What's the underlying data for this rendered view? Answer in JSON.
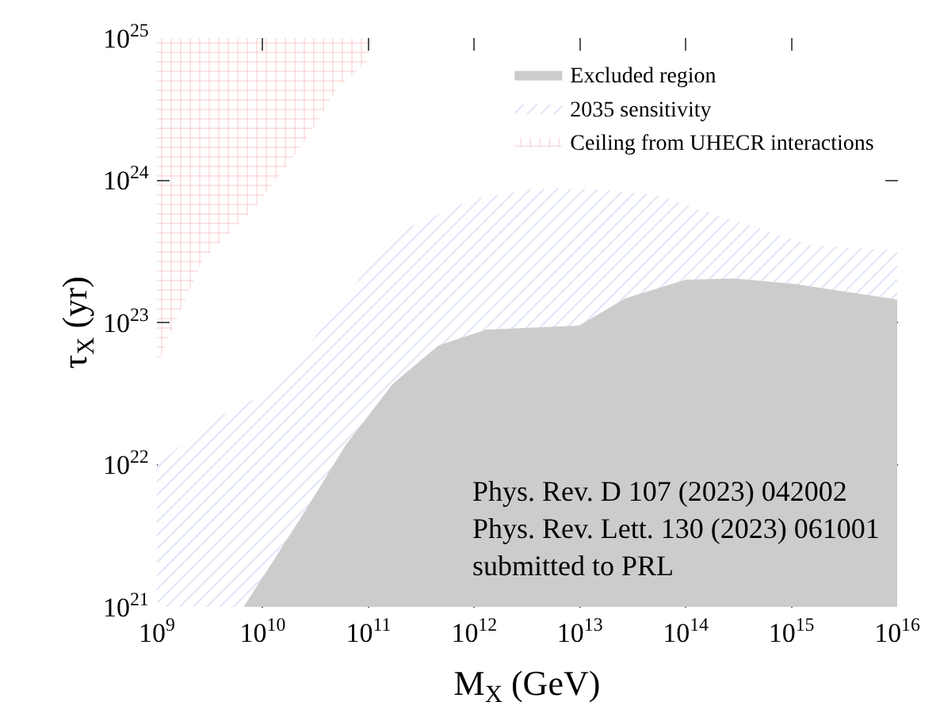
{
  "chart_data": {
    "type": "area",
    "xlabel": "M$_{X}$ (GeV)",
    "ylabel": "τ$_{X}$ (yr)",
    "log": "xy",
    "xlim": [
      1000000000.0,
      1e+16
    ],
    "ylim": [
      1e+21,
      1e+25
    ],
    "xticks": [
      {
        "value": 1000000000.0,
        "label": "10$^{9}$"
      },
      {
        "value": 10000000000.0,
        "label": "10$^{10}$"
      },
      {
        "value": 100000000000.0,
        "label": "10$^{11}$"
      },
      {
        "value": 1000000000000.0,
        "label": "10$^{12}$"
      },
      {
        "value": 10000000000000.0,
        "label": "10$^{13}$"
      },
      {
        "value": 100000000000000.0,
        "label": "10$^{14}$"
      },
      {
        "value": 1000000000000000.0,
        "label": "10$^{15}$"
      },
      {
        "value": 1e+16,
        "label": "10$^{16}$"
      }
    ],
    "yticks": [
      {
        "value": 1e+21,
        "label": "10$^{21}$"
      },
      {
        "value": 1e+22,
        "label": "10$^{22}$"
      },
      {
        "value": 1e+23,
        "label": "10$^{23}$"
      },
      {
        "value": 1e+24,
        "label": "10$^{24}$"
      },
      {
        "value": 1e+25,
        "label": "10$^{25}$"
      }
    ],
    "legend": "top right",
    "series": [
      {
        "name": "Excluded region",
        "color": "#cccccc",
        "x": [
          6600000000.0,
          11000000000.0,
          26000000000.0,
          60000000000.0,
          170000000000.0,
          460000000000.0,
          1300000000000.0,
          4900000000000.0,
          9800000000000.0,
          27000000000000.0,
          100000000000000.0,
          290000000000000.0,
          1100000000000000.0,
          1e+16
        ],
        "values": [
          1e+21,
          1.8e+21,
          4.9e+21,
          1.35e+22,
          3.7e+22,
          6.9e+22,
          8.9e+22,
          9.3e+22,
          9.5e+22,
          1.48e+23,
          2e+23,
          2.04e+23,
          1.86e+23,
          1.45e+23
        ]
      },
      {
        "name": "2035 sensitivity",
        "color": "#aab8ee",
        "x": [
          1000000000.0,
          2900000000.0,
          11000000000.0,
          15500000000.0,
          31000000000.0,
          85000000000.0,
          230000000000.0,
          910000000000.0,
          3500000000000.0,
          13500000000000.0,
          52000000000000.0,
          290000000000000.0,
          1550000000000000.0,
          1e+16
        ],
        "values": [
          9.8e+21,
          1.95e+22,
          3.2e+22,
          4e+22,
          7.9e+22,
          2.1e+23,
          4.6e+23,
          7.2e+23,
          8.7e+23,
          8.7e+23,
          7.9e+23,
          5.2e+23,
          3.5e+23,
          3.2e+23
        ]
      },
      {
        "name": "Ceiling from UHECR interactions",
        "color": "#f07070",
        "x": [
          1000000000.0,
          1000000000.0,
          1230000000.0,
          2700000000.0,
          8500000000.0,
          26000000000.0,
          51000000000.0,
          100000000000.0,
          107000000000.0
        ],
        "values": [
          1e+25,
          4.8e+22,
          7.2e+22,
          2.75e+23,
          6.5e+23,
          1.95e+24,
          4.5e+24,
          6.9e+24,
          1e+25
        ]
      }
    ],
    "annotations": [
      "Phys. Rev. D 107 (2023) 042002\nPhys. Rev. Lett. 130 (2023) 061001\nsubmitted to PRL"
    ]
  }
}
